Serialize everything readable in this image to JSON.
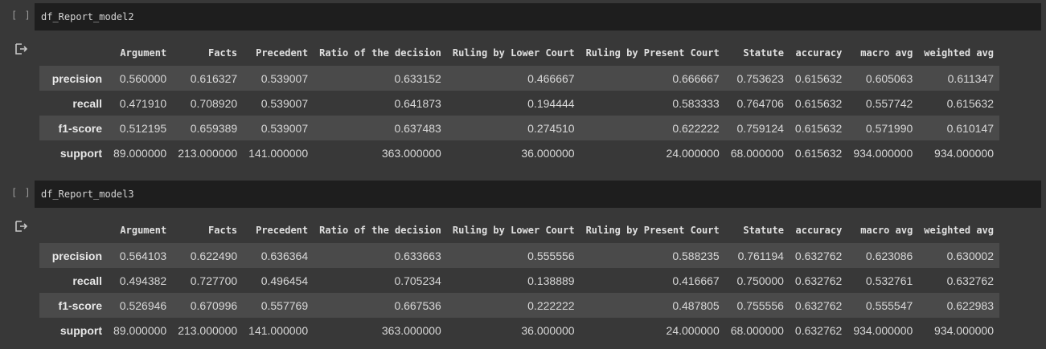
{
  "cells": [
    {
      "run_indicator": "[ ]",
      "code": "df_Report_model2",
      "columns": [
        "Argument",
        "Facts",
        "Precedent",
        "Ratio of the decision",
        "Ruling by Lower Court",
        "Ruling by Present Court",
        "Statute",
        "accuracy",
        "macro avg",
        "weighted avg"
      ],
      "rows": [
        {
          "label": "precision",
          "values": [
            "0.560000",
            "0.616327",
            "0.539007",
            "0.633152",
            "0.466667",
            "0.666667",
            "0.753623",
            "0.615632",
            "0.605063",
            "0.611347"
          ]
        },
        {
          "label": "recall",
          "values": [
            "0.471910",
            "0.708920",
            "0.539007",
            "0.641873",
            "0.194444",
            "0.583333",
            "0.764706",
            "0.615632",
            "0.557742",
            "0.615632"
          ]
        },
        {
          "label": "f1-score",
          "values": [
            "0.512195",
            "0.659389",
            "0.539007",
            "0.637483",
            "0.274510",
            "0.622222",
            "0.759124",
            "0.615632",
            "0.571990",
            "0.610147"
          ]
        },
        {
          "label": "support",
          "values": [
            "89.000000",
            "213.000000",
            "141.000000",
            "363.000000",
            "36.000000",
            "24.000000",
            "68.000000",
            "0.615632",
            "934.000000",
            "934.000000"
          ]
        }
      ]
    },
    {
      "run_indicator": "[ ]",
      "code": "df_Report_model3",
      "columns": [
        "Argument",
        "Facts",
        "Precedent",
        "Ratio of the decision",
        "Ruling by Lower Court",
        "Ruling by Present Court",
        "Statute",
        "accuracy",
        "macro avg",
        "weighted avg"
      ],
      "rows": [
        {
          "label": "precision",
          "values": [
            "0.564103",
            "0.622490",
            "0.636364",
            "0.633663",
            "0.555556",
            "0.588235",
            "0.761194",
            "0.632762",
            "0.623086",
            "0.630002"
          ]
        },
        {
          "label": "recall",
          "values": [
            "0.494382",
            "0.727700",
            "0.496454",
            "0.705234",
            "0.138889",
            "0.416667",
            "0.750000",
            "0.632762",
            "0.532761",
            "0.632762"
          ]
        },
        {
          "label": "f1-score",
          "values": [
            "0.526946",
            "0.670996",
            "0.557769",
            "0.667536",
            "0.222222",
            "0.487805",
            "0.755556",
            "0.632762",
            "0.555547",
            "0.622983"
          ]
        },
        {
          "label": "support",
          "values": [
            "89.000000",
            "213.000000",
            "141.000000",
            "363.000000",
            "36.000000",
            "24.000000",
            "68.000000",
            "0.632762",
            "934.000000",
            "934.000000"
          ]
        }
      ]
    }
  ],
  "icons": {
    "output": "output-arrow-icon"
  },
  "colors": {
    "background": "#383838",
    "code_box": "#1e1e1e",
    "stripe": "#4a4a4a"
  }
}
